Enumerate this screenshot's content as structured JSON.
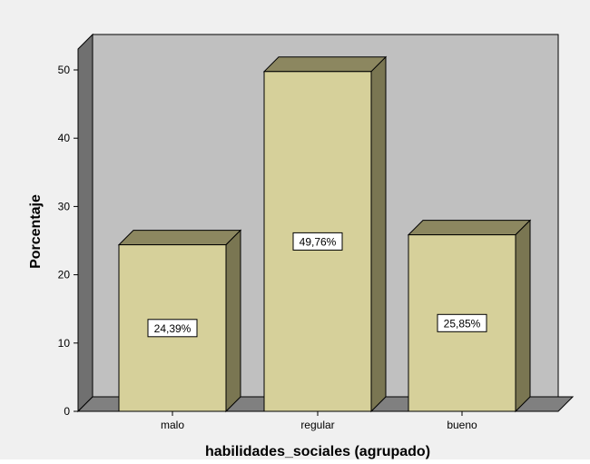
{
  "chart_data": {
    "type": "bar",
    "categories": [
      "malo",
      "regular",
      "bueno"
    ],
    "values": [
      24.39,
      49.76,
      25.85
    ],
    "data_labels": [
      "24,39%",
      "49,76%",
      "25,85%"
    ],
    "xlabel": "habilidades_sociales (agrupado)",
    "ylabel": "Porcentaje",
    "yticks": [
      "0",
      "10",
      "20",
      "30",
      "40",
      "50"
    ],
    "ylim": [
      0,
      55
    ],
    "grid": false,
    "style": "3d",
    "colors": {
      "page_background": "#f0f0f0",
      "plot_back_wall": "#c0c0c0",
      "plot_side_wall": "#707070",
      "plot_floor": "#808080",
      "bar_front": "#d6d09a",
      "bar_top": "#8c8760",
      "bar_side": "#7a7652"
    }
  }
}
